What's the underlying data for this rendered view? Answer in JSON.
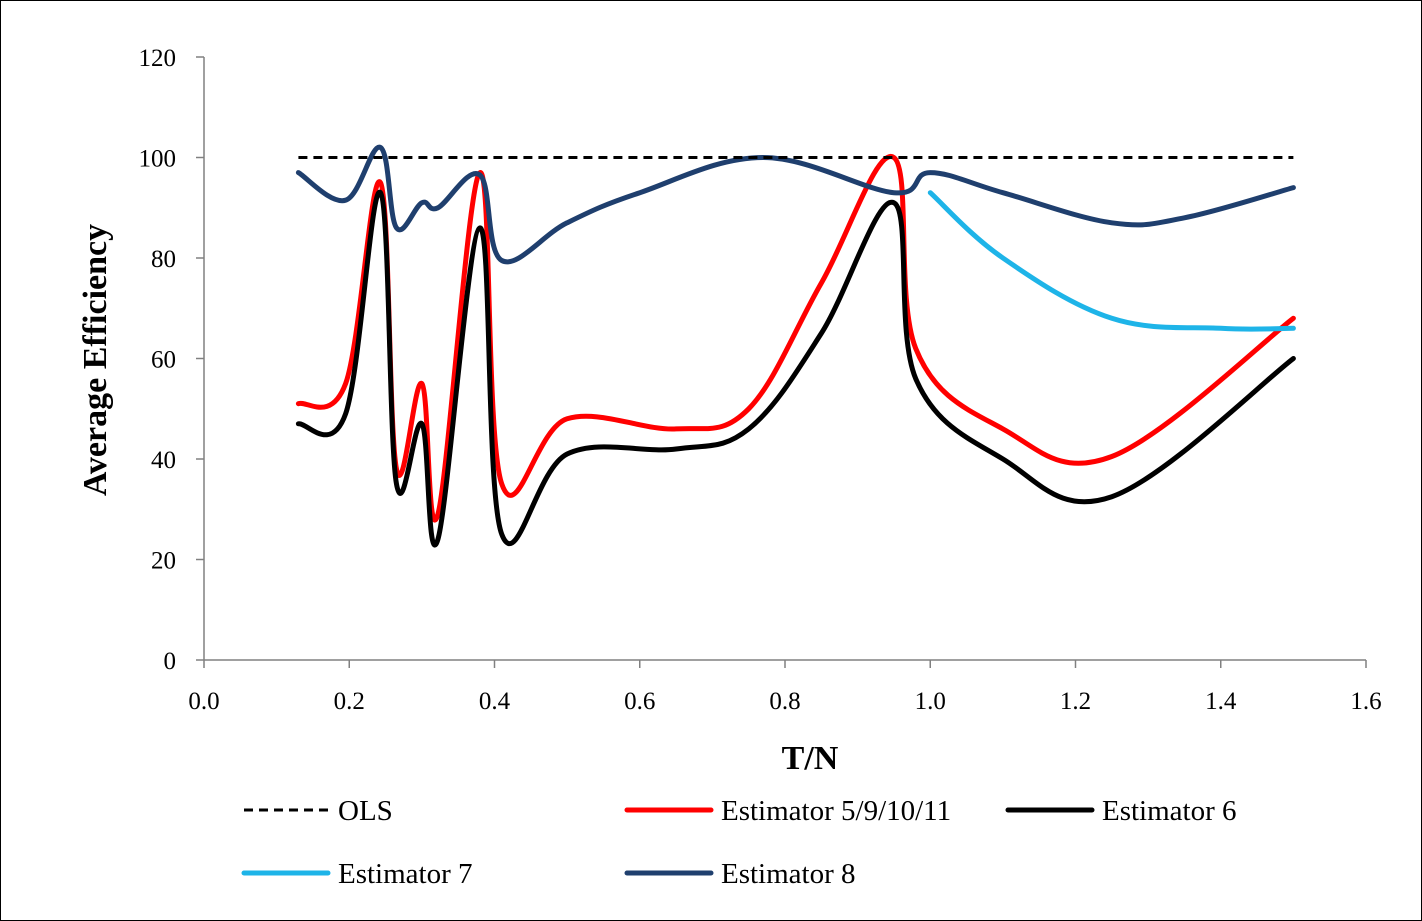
{
  "chart_data": {
    "type": "line",
    "title": "",
    "xlabel": "T/N",
    "ylabel": "Average Efficiency",
    "xlim": [
      0.0,
      1.6
    ],
    "ylim": [
      0,
      120
    ],
    "xticks": [
      "0.0",
      "0.2",
      "0.4",
      "0.6",
      "0.8",
      "1.0",
      "1.2",
      "1.4",
      "1.6"
    ],
    "yticks": [
      "0",
      "20",
      "40",
      "60",
      "80",
      "100",
      "120"
    ],
    "grid": false,
    "legend_position": "bottom",
    "series": [
      {
        "name": "OLS",
        "color": "#000000",
        "style": "dashed",
        "points": [
          [
            0.13,
            100
          ],
          [
            1.5,
            100
          ]
        ]
      },
      {
        "name": "Estimator 5/9/10/11",
        "color": "#ff0000",
        "style": "solid",
        "points": [
          [
            0.13,
            51
          ],
          [
            0.195,
            55
          ],
          [
            0.243,
            95
          ],
          [
            0.265,
            38
          ],
          [
            0.3,
            55
          ],
          [
            0.322,
            29
          ],
          [
            0.38,
            97
          ],
          [
            0.41,
            35
          ],
          [
            0.5,
            48
          ],
          [
            0.65,
            46
          ],
          [
            0.75,
            50
          ],
          [
            0.85,
            75
          ],
          [
            0.95,
            100
          ],
          [
            0.98,
            62
          ],
          [
            1.1,
            46
          ],
          [
            1.25,
            40.5
          ],
          [
            1.5,
            68
          ]
        ]
      },
      {
        "name": "Estimator 6",
        "color": "#000000",
        "style": "solid",
        "points": [
          [
            0.13,
            47
          ],
          [
            0.195,
            49
          ],
          [
            0.243,
            93
          ],
          [
            0.265,
            35
          ],
          [
            0.3,
            47
          ],
          [
            0.322,
            24
          ],
          [
            0.38,
            86
          ],
          [
            0.41,
            25
          ],
          [
            0.5,
            41
          ],
          [
            0.65,
            42
          ],
          [
            0.75,
            46
          ],
          [
            0.85,
            65
          ],
          [
            0.95,
            91
          ],
          [
            0.98,
            56
          ],
          [
            1.1,
            40
          ],
          [
            1.25,
            32.5
          ],
          [
            1.5,
            60
          ]
        ]
      },
      {
        "name": "Estimator 7",
        "color": "#1eb4e8",
        "style": "solid",
        "points": [
          [
            1.0,
            93
          ],
          [
            1.1,
            80
          ],
          [
            1.25,
            68
          ],
          [
            1.4,
            66
          ],
          [
            1.5,
            66
          ]
        ]
      },
      {
        "name": "Estimator 8",
        "color": "#1f3f6e",
        "style": "solid",
        "points": [
          [
            0.13,
            97
          ],
          [
            0.195,
            91.5
          ],
          [
            0.243,
            102
          ],
          [
            0.265,
            86
          ],
          [
            0.3,
            91
          ],
          [
            0.322,
            90
          ],
          [
            0.38,
            96.5
          ],
          [
            0.41,
            79.5
          ],
          [
            0.5,
            87
          ],
          [
            0.6,
            93
          ],
          [
            0.77,
            100
          ],
          [
            0.95,
            93
          ],
          [
            1.0,
            97
          ],
          [
            1.1,
            93
          ],
          [
            1.25,
            87
          ],
          [
            1.35,
            88
          ],
          [
            1.5,
            94
          ]
        ]
      }
    ],
    "legend_rows": [
      [
        "OLS",
        "Estimator 5/9/10/11",
        "Estimator 6"
      ],
      [
        "Estimator 7",
        "Estimator 8"
      ]
    ]
  }
}
